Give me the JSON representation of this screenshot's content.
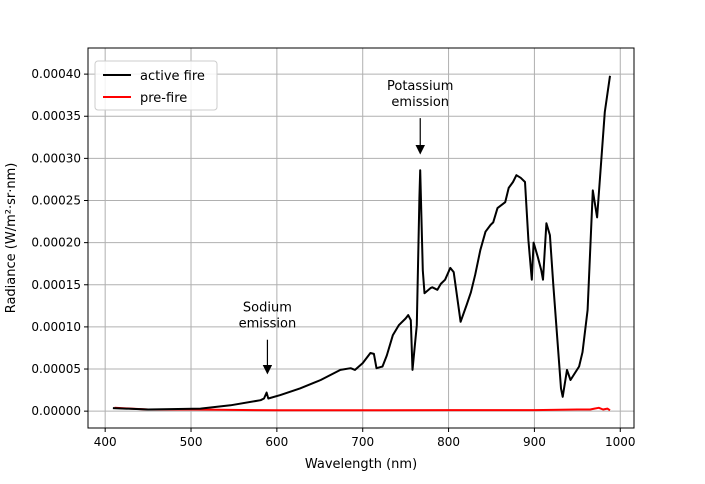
{
  "chart_data": {
    "type": "line",
    "title": "",
    "xlabel": "Wavelength (nm)",
    "ylabel": "Radiance (W/m²·sr·nm)",
    "xlim": [
      380,
      1016
    ],
    "ylim": [
      -2e-05,
      0.000431
    ],
    "grid": true,
    "legend_position": "top-left",
    "xticks": [
      400,
      500,
      600,
      700,
      800,
      900,
      1000
    ],
    "xtick_labels": [
      "400",
      "500",
      "600",
      "700",
      "800",
      "900",
      "1000"
    ],
    "yticks": [
      0,
      5e-05,
      0.0001,
      0.00015,
      0.0002,
      0.00025,
      0.0003,
      0.00035,
      0.0004
    ],
    "ytick_labels": [
      "0.00000",
      "0.00005",
      "0.00010",
      "0.00015",
      "0.00020",
      "0.00025",
      "0.00030",
      "0.00035",
      "0.00040"
    ],
    "series": [
      {
        "name": "active fire",
        "color": "#000000",
        "x": [
          409,
          450,
          511,
          546,
          581,
          585,
          588,
          590,
          604,
          627,
          651,
          674,
          686,
          691,
          700,
          709,
          713,
          716,
          723,
          728,
          735,
          742,
          750,
          753,
          756,
          758,
          763,
          766,
          767,
          770,
          772,
          779,
          781,
          787,
          791,
          796,
          802,
          806,
          814,
          821,
          826,
          831,
          837,
          843,
          849,
          852,
          857,
          866,
          870,
          875,
          879,
          884,
          889,
          893,
          897,
          899,
          904,
          908,
          910,
          914,
          918,
          922,
          931,
          933,
          938,
          942,
          952,
          956,
          962,
          968,
          973,
          982,
          988
        ],
        "y": [
          3.6e-06,
          2e-06,
          3e-06,
          7e-06,
          1.3e-05,
          1.5e-05,
          2.2e-05,
          1.5e-05,
          1.9e-05,
          2.7e-05,
          3.7e-05,
          4.9e-05,
          5.1e-05,
          4.9e-05,
          5.7e-05,
          6.9e-05,
          6.8e-05,
          5.1e-05,
          5.3e-05,
          6.6e-05,
          9e-05,
          0.000102,
          0.00011,
          0.000114,
          0.000108,
          4.9e-05,
          0.000102,
          0.000253,
          0.000286,
          0.000167,
          0.00014,
          0.000146,
          0.000147,
          0.000144,
          0.000151,
          0.000156,
          0.00017,
          0.000165,
          0.000106,
          0.000126,
          0.000141,
          0.000162,
          0.000191,
          0.000213,
          0.000221,
          0.000224,
          0.000241,
          0.000248,
          0.000265,
          0.000272,
          0.00028,
          0.000277,
          0.000272,
          0.000203,
          0.000156,
          0.0002,
          0.000183,
          0.000167,
          0.000156,
          0.000223,
          0.000209,
          0.00015,
          2.7e-05,
          1.7e-05,
          4.9e-05,
          3.7e-05,
          5.3e-05,
          7e-05,
          0.00012,
          0.000262,
          0.00023,
          0.000355,
          0.000398
        ]
      },
      {
        "name": "pre-fire",
        "color": "#ff0000",
        "x": [
          411,
          430,
          450,
          500,
          600,
          700,
          800,
          900,
          950,
          965,
          970,
          975,
          980,
          985,
          988
        ],
        "y": [
          4e-06,
          3e-06,
          2e-06,
          2e-06,
          1e-06,
          1e-06,
          1.2e-06,
          1.2e-06,
          2e-06,
          2e-06,
          3e-06,
          4e-06,
          2e-06,
          3e-06,
          1e-06
        ]
      }
    ],
    "annotations": [
      {
        "lines": [
          "Sodium",
          "emission"
        ],
        "x": 589,
        "y": 4.5e-05,
        "text_y": 0.000118
      },
      {
        "lines": [
          "Potassium",
          "emission"
        ],
        "x": 767,
        "y": 0.000306,
        "text_y": 0.000381
      }
    ]
  }
}
